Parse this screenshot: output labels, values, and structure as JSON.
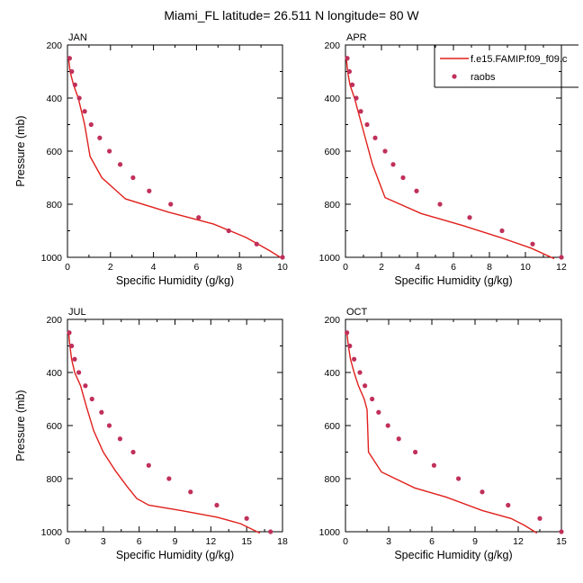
{
  "figure": {
    "title": "Miami_FL  latitude= 26.511 N longitude= 80 W"
  },
  "colors": {
    "model_line": "#e0201c",
    "obs_marker": "#c0305a",
    "axis": "#000000"
  },
  "legend": {
    "placement": "top-right of APR panel",
    "entries": [
      {
        "label": "f.e15.FAMIP.f09_f09.c",
        "style": "line"
      },
      {
        "label": "raobs",
        "style": "marker"
      }
    ]
  },
  "chart_data": [
    {
      "type": "line",
      "panel_label": "JAN",
      "xlabel": "Specific Humidity (g/kg)",
      "ylabel": "Pressure (mb)",
      "xlim": [
        0,
        10
      ],
      "ylim": [
        1000,
        200
      ],
      "y_inverted": true,
      "xticks": [
        "0",
        "2",
        "4",
        "6",
        "8",
        "10"
      ],
      "yticks": [
        "200",
        "400",
        "600",
        "800",
        "1000"
      ],
      "series": [
        {
          "name": "f.e15.FAMIP.f09_f09.c",
          "kind": "line",
          "x": [
            0.05,
            0.12,
            0.28,
            0.5,
            0.8,
            1.05,
            1.6,
            2.7,
            4.7,
            6.8,
            8.3,
            9.4,
            9.9
          ],
          "y": [
            250,
            300,
            350,
            400,
            500,
            620,
            700,
            780,
            830,
            875,
            925,
            975,
            1000
          ]
        },
        {
          "name": "raobs",
          "kind": "scatter",
          "x": [
            0.1,
            0.2,
            0.35,
            0.55,
            0.8,
            1.1,
            1.5,
            1.95,
            2.45,
            3.05,
            3.8,
            4.8,
            6.1,
            7.5,
            8.8,
            10.0
          ],
          "y": [
            250,
            300,
            350,
            400,
            450,
            500,
            550,
            600,
            650,
            700,
            750,
            800,
            850,
            900,
            950,
            1000
          ]
        }
      ]
    },
    {
      "type": "line",
      "panel_label": "APR",
      "xlabel": "Specific Humidity (g/kg)",
      "ylabel": "",
      "xlim": [
        0,
        12
      ],
      "ylim": [
        1000,
        200
      ],
      "y_inverted": true,
      "xticks": [
        "0",
        "2",
        "4",
        "6",
        "8",
        "10",
        "12"
      ],
      "yticks": [
        "200",
        "400",
        "600",
        "800",
        "1000"
      ],
      "series": [
        {
          "name": "f.e15.FAMIP.f09_f09.c",
          "kind": "line",
          "x": [
            0.05,
            0.12,
            0.25,
            0.5,
            0.9,
            1.5,
            2.2,
            4.2,
            6.5,
            8.6,
            10.3,
            11.6
          ],
          "y": [
            250,
            300,
            350,
            400,
            500,
            650,
            775,
            835,
            880,
            925,
            965,
            1005
          ]
        },
        {
          "name": "raobs",
          "kind": "scatter",
          "x": [
            0.1,
            0.22,
            0.38,
            0.6,
            0.85,
            1.2,
            1.65,
            2.2,
            2.65,
            3.2,
            3.95,
            5.25,
            6.9,
            8.7,
            10.4,
            12.0
          ],
          "y": [
            250,
            300,
            350,
            400,
            450,
            500,
            550,
            600,
            650,
            700,
            750,
            800,
            850,
            900,
            950,
            1000
          ]
        }
      ]
    },
    {
      "type": "line",
      "panel_label": "JUL",
      "xlabel": "Specific Humidity (g/kg)",
      "ylabel": "Pressure (mb)",
      "xlim": [
        0,
        18
      ],
      "ylim": [
        1000,
        200
      ],
      "y_inverted": true,
      "xticks": [
        "0",
        "3",
        "6",
        "9",
        "12",
        "15",
        "18"
      ],
      "yticks": [
        "200",
        "400",
        "600",
        "800",
        "1000"
      ],
      "series": [
        {
          "name": "f.e15.FAMIP.f09_f09.c",
          "kind": "line",
          "x": [
            0.1,
            0.2,
            0.35,
            0.6,
            1.1,
            1.6,
            2.2,
            3.0,
            4.0,
            5.0,
            5.8,
            6.8,
            9.5,
            12.5,
            14.5,
            16.1
          ],
          "y": [
            250,
            300,
            350,
            400,
            450,
            530,
            620,
            700,
            770,
            830,
            875,
            900,
            920,
            945,
            970,
            1005
          ]
        },
        {
          "name": "raobs",
          "kind": "scatter",
          "x": [
            0.15,
            0.35,
            0.6,
            0.95,
            1.5,
            2.05,
            2.85,
            3.5,
            4.4,
            5.5,
            6.8,
            8.5,
            10.3,
            12.5,
            15.0,
            17.0
          ],
          "y": [
            250,
            300,
            350,
            400,
            450,
            500,
            550,
            600,
            650,
            700,
            750,
            800,
            850,
            900,
            950,
            1000
          ]
        }
      ]
    },
    {
      "type": "line",
      "panel_label": "OCT",
      "xlabel": "Specific Humidity (g/kg)",
      "ylabel": "",
      "xlim": [
        0,
        15
      ],
      "ylim": [
        1000,
        200
      ],
      "y_inverted": true,
      "xticks": [
        "0",
        "3",
        "6",
        "9",
        "12",
        "15"
      ],
      "yticks": [
        "200",
        "400",
        "600",
        "800",
        "1000"
      ],
      "series": [
        {
          "name": "f.e15.FAMIP.f09_f09.c",
          "kind": "line",
          "x": [
            0.1,
            0.2,
            0.35,
            0.6,
            0.9,
            1.3,
            1.5,
            1.6,
            2.5,
            4.8,
            7.0,
            9.5,
            11.5,
            12.4,
            13.3
          ],
          "y": [
            250,
            300,
            350,
            400,
            450,
            500,
            540,
            700,
            775,
            835,
            870,
            920,
            950,
            975,
            1005
          ]
        },
        {
          "name": "raobs",
          "kind": "scatter",
          "x": [
            0.1,
            0.3,
            0.6,
            1.0,
            1.35,
            1.85,
            2.3,
            2.95,
            3.7,
            4.85,
            6.15,
            7.85,
            9.5,
            11.3,
            13.5,
            15.0
          ],
          "y": [
            250,
            300,
            350,
            400,
            450,
            500,
            550,
            600,
            650,
            700,
            750,
            800,
            850,
            900,
            950,
            1000
          ]
        }
      ]
    }
  ]
}
